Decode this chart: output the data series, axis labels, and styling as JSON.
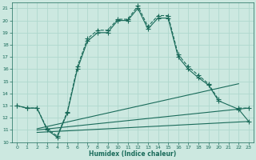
{
  "xlabel": "Humidex (Indice chaleur)",
  "xlim": [
    -0.5,
    23.5
  ],
  "ylim": [
    10,
    21.5
  ],
  "yticks": [
    10,
    11,
    12,
    13,
    14,
    15,
    16,
    17,
    18,
    19,
    20,
    21
  ],
  "xticks": [
    0,
    1,
    2,
    3,
    4,
    5,
    6,
    7,
    8,
    9,
    10,
    11,
    12,
    13,
    14,
    15,
    16,
    17,
    18,
    19,
    20,
    21,
    22,
    23
  ],
  "bg_color": "#cce8e0",
  "grid_color": "#b0d8ce",
  "line_color": "#1a6b5a",
  "lines": [
    {
      "x": [
        0,
        1,
        2,
        3,
        4,
        5,
        6,
        7,
        8,
        9,
        10,
        11,
        12,
        13,
        14,
        15,
        16,
        17,
        18,
        19,
        20,
        21,
        22,
        23
      ],
      "y": [
        13.0,
        12.8,
        12.8,
        11.1,
        10.5,
        12.5,
        16.2,
        18.5,
        19.2,
        19.2,
        20.1,
        20.1,
        21.2,
        19.5,
        20.4,
        20.4,
        17.2,
        16.2,
        15.5,
        14.8,
        13.5,
        null,
        12.8,
        12.8
      ],
      "style": "--",
      "marker": "+",
      "markersize": 4
    },
    {
      "x": [
        0,
        1,
        2,
        3,
        4,
        5,
        6,
        7,
        8,
        9,
        10,
        11,
        12,
        13,
        14,
        15,
        16,
        17,
        18,
        19,
        20,
        22,
        23
      ],
      "y": [
        13.0,
        12.8,
        12.8,
        11.0,
        10.4,
        12.4,
        16.0,
        18.3,
        19.0,
        19.0,
        20.0,
        20.0,
        21.0,
        19.3,
        20.2,
        20.2,
        17.0,
        16.0,
        15.3,
        14.7,
        13.4,
        12.7,
        11.7
      ],
      "style": "-",
      "marker": "+",
      "markersize": 4
    },
    {
      "x": [
        2,
        22
      ],
      "y": [
        11.1,
        14.8
      ],
      "style": "-",
      "marker": "",
      "markersize": 0
    },
    {
      "x": [
        2,
        23
      ],
      "y": [
        11.0,
        12.8
      ],
      "style": "-",
      "marker": "",
      "markersize": 0
    },
    {
      "x": [
        2,
        23
      ],
      "y": [
        10.8,
        11.7
      ],
      "style": "-",
      "marker": "",
      "markersize": 0
    }
  ]
}
